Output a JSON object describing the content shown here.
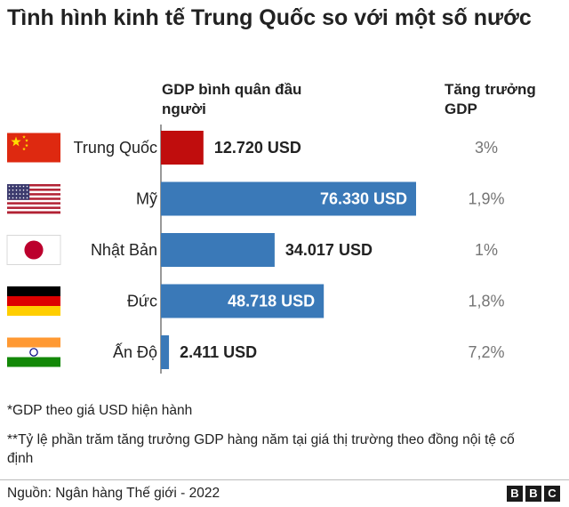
{
  "title": "Tình hình kinh tế Trung Quốc so với một số nước",
  "headers": {
    "gdp_col": "GDP bình quân đầu người",
    "growth_col": "Tăng trưởng GDP"
  },
  "colors": {
    "highlight": "#c00d0d",
    "bar": "#3a79b8",
    "growth_text": "#757575"
  },
  "chart_data": {
    "type": "bar",
    "orientation": "horizontal",
    "categories": [
      "Trung Quốc",
      "Mỹ",
      "Nhật Bản",
      "Đức",
      "Ấn Độ"
    ],
    "flags": [
      "china-flag-icon",
      "usa-flag-icon",
      "japan-flag-icon",
      "germany-flag-icon",
      "india-flag-icon"
    ],
    "values": [
      12720,
      76330,
      34017,
      48718,
      2411
    ],
    "value_labels": [
      "12.720 USD",
      "76.330 USD",
      "34.017 USD",
      "48.718 USD",
      "2.411 USD"
    ],
    "highlight_index": 0,
    "growth_labels": [
      "3%",
      "1,9%",
      "1%",
      "1,8%",
      "7,2%"
    ],
    "growth_values": [
      3,
      1.9,
      1,
      1.8,
      7.2
    ],
    "xlim": [
      0,
      76330
    ]
  },
  "notes": {
    "note1": "*GDP theo giá USD hiện hành",
    "note2": "**Tỷ lệ phần trăm tăng trưởng GDP hàng năm tại giá thị trường theo đồng nội tệ cố định"
  },
  "source": "Nguồn: Ngân hàng Thế giới - 2022",
  "logo": [
    "B",
    "B",
    "C"
  ]
}
